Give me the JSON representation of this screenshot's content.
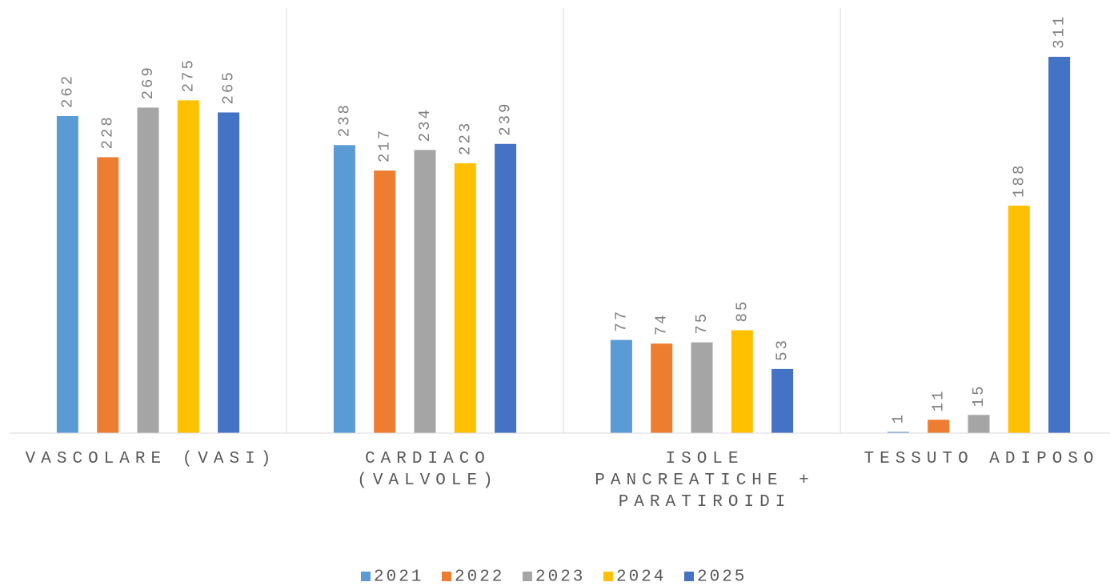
{
  "chart_data": {
    "type": "bar",
    "categories": [
      "VASCOLARE (VASI)",
      "CARDIACO (VALVOLE)",
      "ISOLE PANCREATICHE + PARATIROIDI",
      "TESSUTO ADIPOSO"
    ],
    "series": [
      {
        "name": "2021",
        "color": "#5b9bd5",
        "values": [
          262,
          238,
          77,
          1
        ]
      },
      {
        "name": "2022",
        "color": "#ed7d31",
        "values": [
          228,
          217,
          74,
          11
        ]
      },
      {
        "name": "2023",
        "color": "#a5a5a5",
        "values": [
          269,
          234,
          75,
          15
        ]
      },
      {
        "name": "2024",
        "color": "#ffc000",
        "values": [
          275,
          223,
          85,
          188
        ]
      },
      {
        "name": "2025",
        "color": "#4472c4",
        "values": [
          265,
          239,
          53,
          311
        ]
      }
    ],
    "ylim": [
      0,
      350
    ],
    "legend": "bottom"
  }
}
